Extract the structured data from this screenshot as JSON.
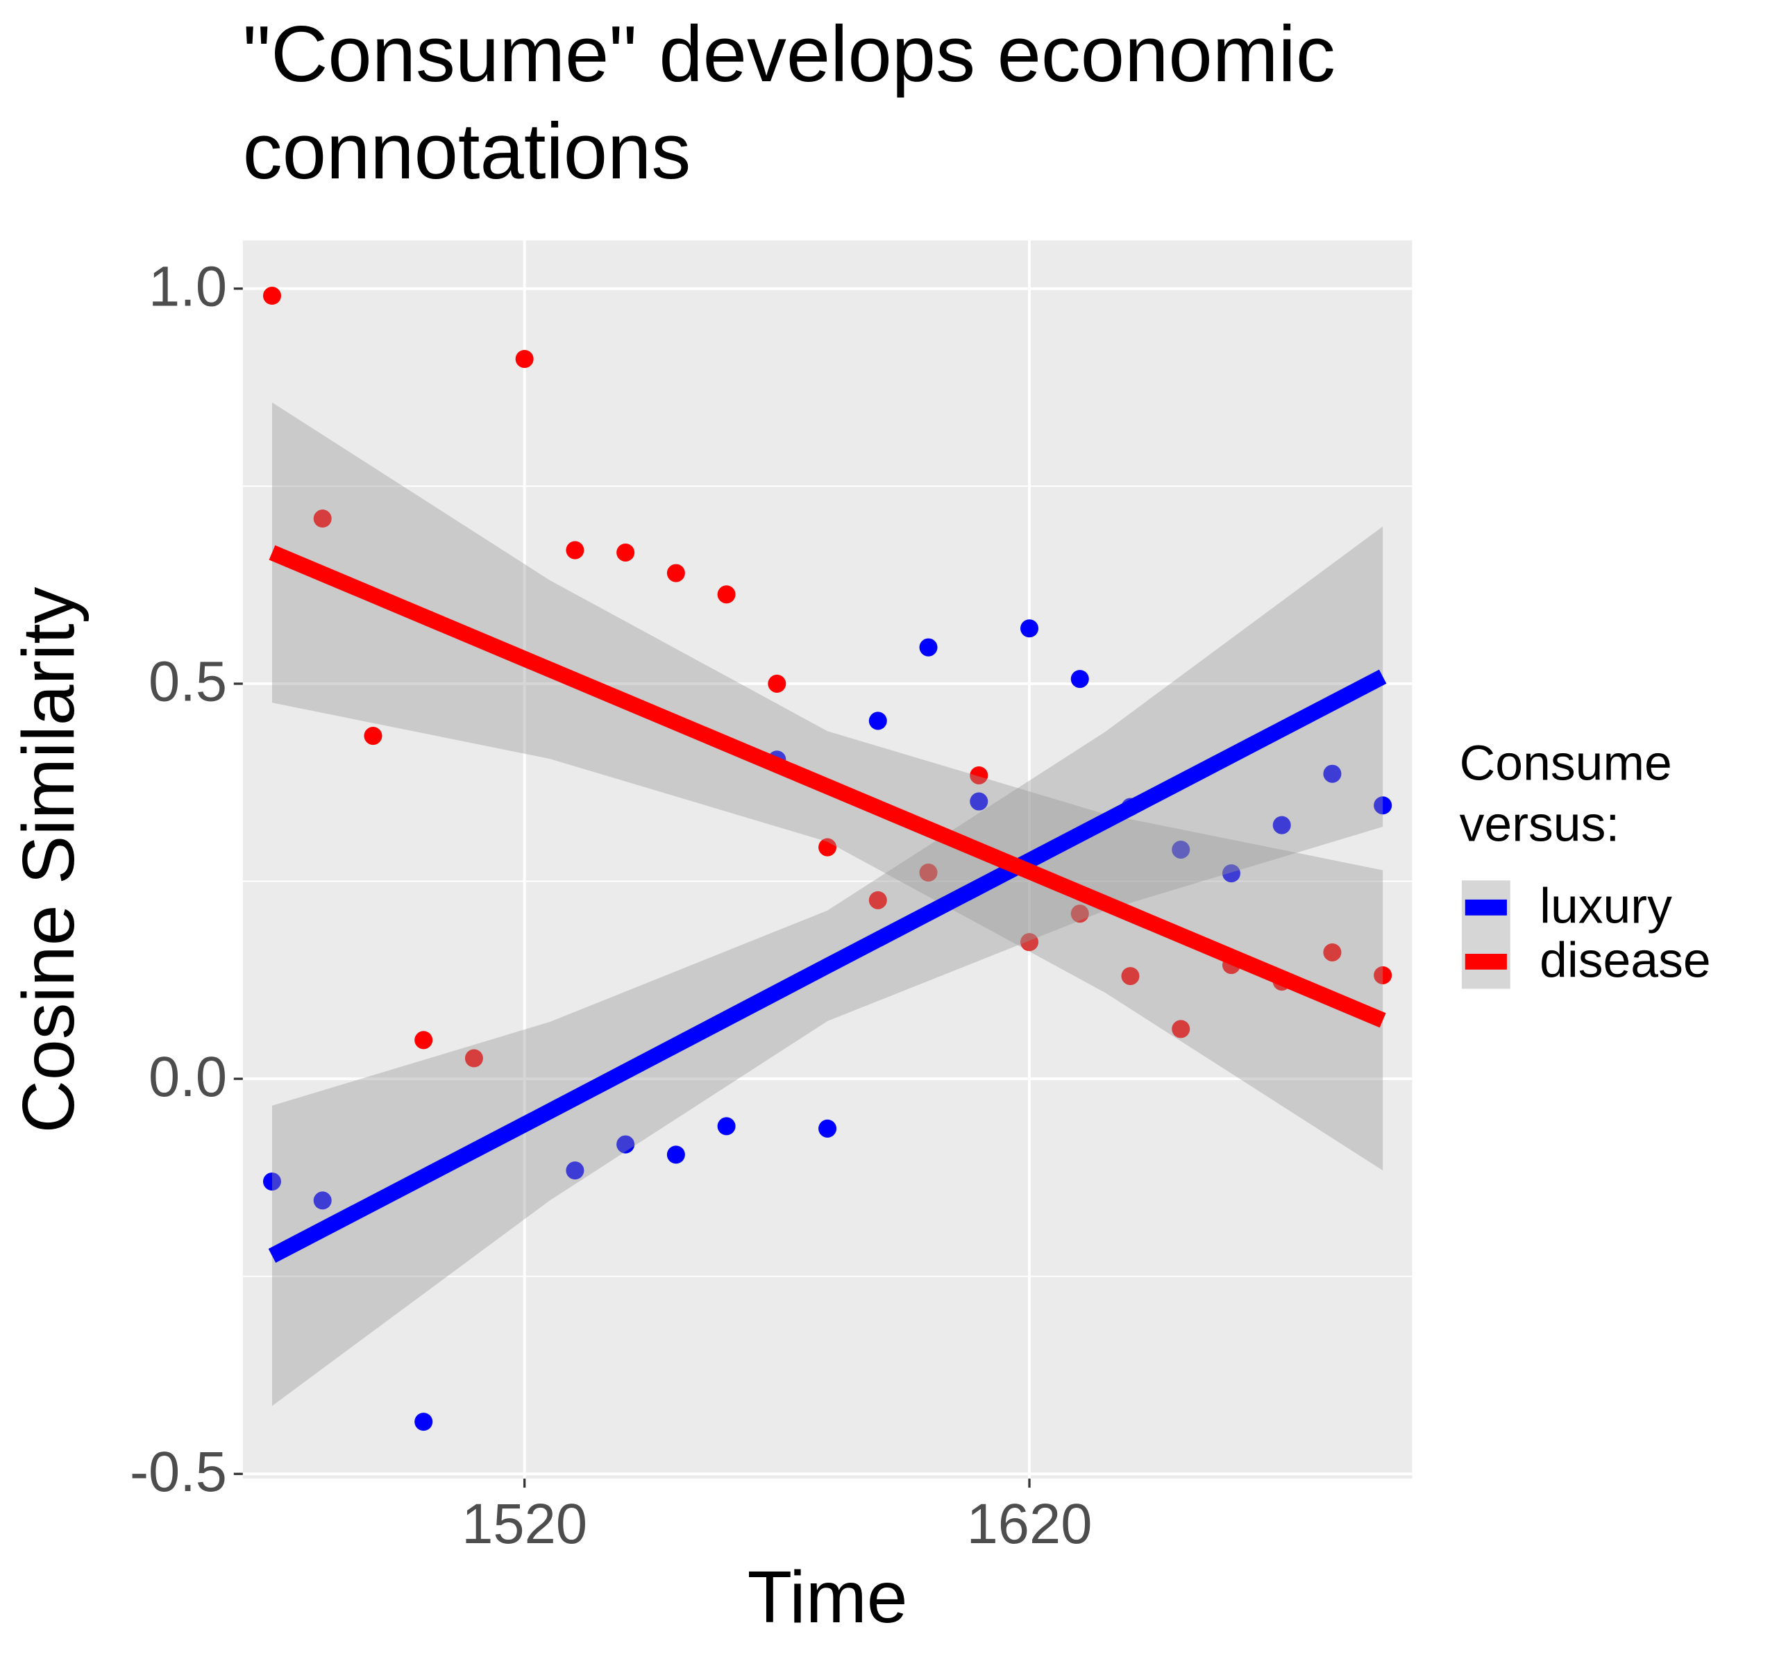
{
  "chart_data": {
    "type": "scatter",
    "title": "\"Consume\" develops economic connotations",
    "x_label": "Time",
    "y_label": "Cosine Similarity",
    "legend_title": "Consume versus:",
    "x": [
      1470,
      1480,
      1490,
      1500,
      1510,
      1520,
      1530,
      1540,
      1550,
      1560,
      1570,
      1580,
      1590,
      1600,
      1610,
      1620,
      1630,
      1640,
      1650,
      1660,
      1670,
      1680,
      1690
    ],
    "series": [
      {
        "name": "luxury",
        "color": "#0000ff",
        "values": [
          -0.13,
          -0.154,
          null,
          -0.434,
          null,
          null,
          -0.116,
          -0.083,
          -0.096,
          -0.06,
          0.404,
          -0.063,
          0.453,
          0.546,
          0.351,
          0.57,
          0.506,
          0.344,
          0.29,
          0.26,
          0.321,
          0.386,
          0.346
        ],
        "fit_x": [
          1470,
          1525,
          1580,
          1635,
          1690
        ],
        "fit": [
          -0.224,
          -0.041,
          0.143,
          0.326,
          0.509
        ],
        "fit_upper": [
          -0.034,
          0.072,
          0.213,
          0.439,
          0.699
        ],
        "fit_lower": [
          -0.414,
          -0.154,
          0.073,
          0.213,
          0.319
        ]
      },
      {
        "name": "disease",
        "color": "#ff0000",
        "values": [
          0.991,
          0.709,
          0.434,
          0.049,
          0.026,
          0.911,
          0.669,
          0.666,
          0.64,
          0.613,
          0.5,
          0.293,
          0.226,
          0.261,
          0.384,
          0.173,
          0.209,
          0.13,
          0.063,
          0.144,
          0.123,
          0.16,
          0.131
        ],
        "fit_x": [
          1470,
          1525,
          1580,
          1635,
          1690
        ],
        "fit": [
          0.666,
          0.518,
          0.37,
          0.222,
          0.074
        ],
        "fit_upper": [
          0.856,
          0.631,
          0.44,
          0.335,
          0.264
        ],
        "fit_lower": [
          0.476,
          0.405,
          0.3,
          0.109,
          -0.116
        ]
      }
    ],
    "xlim": [
      1464.2,
      1695.8
    ],
    "ylim": [
      -0.506,
      1.061
    ],
    "xticks": [
      1520,
      1620
    ],
    "yticks": [
      {
        "value": 1.0,
        "label": "1.0"
      },
      0.5,
      {
        "value": 0.0,
        "label": "0.0"
      },
      -0.5
    ],
    "yminor": [
      0.75,
      0.25,
      -0.25
    ],
    "grid": true
  }
}
